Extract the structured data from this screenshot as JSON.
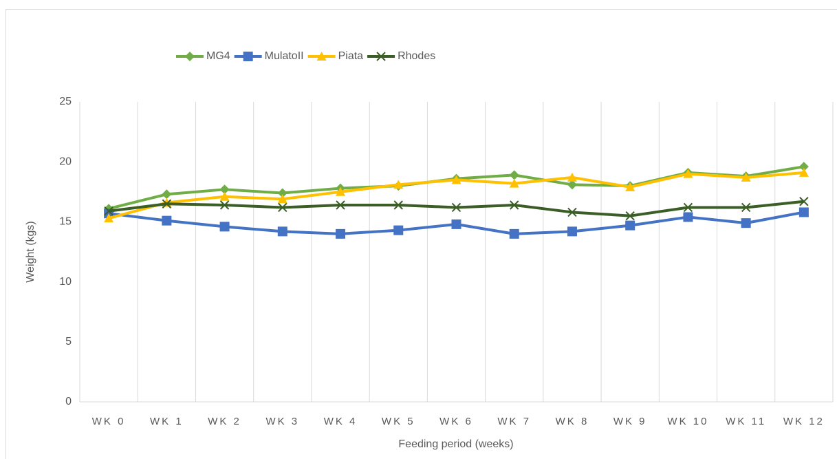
{
  "chart_data": {
    "type": "line",
    "x_label": "Feeding period (weeks)",
    "y_label": "Weight  (kgs)",
    "categories": [
      "WK 0",
      "WK 1",
      "WK 2",
      "WK 3",
      "WK 4",
      "WK 5",
      "WK 6",
      "WK 7",
      "WK 8",
      "WK 9",
      "WK 10",
      "WK 11",
      "WK 12"
    ],
    "series": [
      {
        "name": "MG4",
        "color": "#70ad47",
        "marker": "diamond",
        "values": [
          16.1,
          17.3,
          17.7,
          17.4,
          17.8,
          18.0,
          18.6,
          18.9,
          18.1,
          18.0,
          19.1,
          18.8,
          19.6
        ]
      },
      {
        "name": "MulatoII",
        "color": "#4472c4",
        "marker": "square",
        "values": [
          15.7,
          15.1,
          14.6,
          14.2,
          14.0,
          14.3,
          14.8,
          14.0,
          14.2,
          14.7,
          15.4,
          14.9,
          15.8
        ]
      },
      {
        "name": "Piata",
        "color": "#ffc000",
        "marker": "triangle",
        "values": [
          15.3,
          16.6,
          17.1,
          16.9,
          17.5,
          18.1,
          18.5,
          18.2,
          18.7,
          17.9,
          19.0,
          18.7,
          19.1
        ]
      },
      {
        "name": "Rhodes",
        "color": "#3b5e26",
        "marker": "x",
        "values": [
          15.9,
          16.5,
          16.4,
          16.2,
          16.4,
          16.4,
          16.2,
          16.4,
          15.8,
          15.5,
          16.2,
          16.2,
          16.7
        ]
      }
    ],
    "ylim": [
      0,
      25
    ],
    "yticks": [
      0,
      5,
      10,
      15,
      20,
      25
    ],
    "grid": "vertical",
    "legend": "top"
  }
}
